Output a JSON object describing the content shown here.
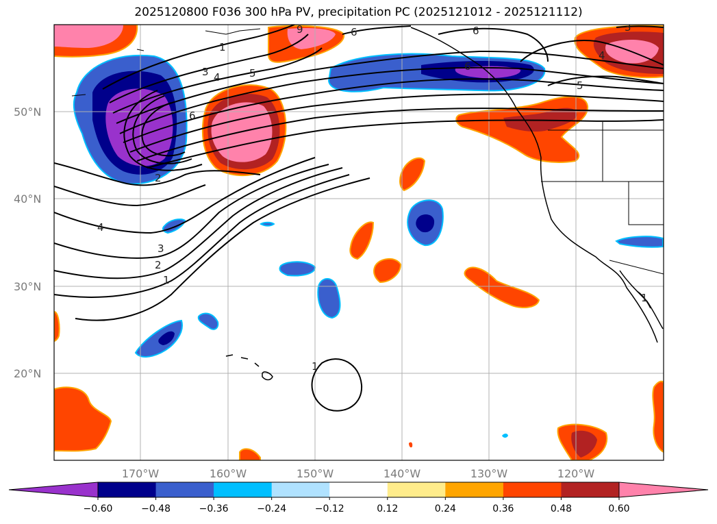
{
  "title": "2025120800 F036 300 hPa PV, precipitation PC (2025121012 - 2025121112)",
  "latitude_labels": [
    "50°N",
    "40°N",
    "30°N",
    "20°N"
  ],
  "longitude_labels": [
    "170°W",
    "160°W",
    "150°W",
    "140°W",
    "130°W",
    "120°W"
  ],
  "colorbar": {
    "tick_labels": [
      "−0.60",
      "−0.48",
      "−0.36",
      "−0.24",
      "−0.12",
      "0.12",
      "0.24",
      "0.36",
      "0.48",
      "0.60"
    ],
    "colors": [
      "#9932cc",
      "#00008b",
      "#3a5fcd",
      "#00bfff",
      "#b0e2ff",
      "#ffffff",
      "#ffec8b",
      "#ffa500",
      "#ff4500",
      "#b22222",
      "#ff82ab"
    ]
  },
  "contour_labels": [
    "1",
    "3",
    "4",
    "5",
    "6",
    "6",
    "2",
    "4",
    "3",
    "2",
    "1",
    "1",
    "4",
    "5",
    "9",
    "6",
    "6",
    "3",
    "1"
  ],
  "colors": {
    "pv_contour": "#000000",
    "grid": "#b0b0b0",
    "coast": "#000000"
  }
}
